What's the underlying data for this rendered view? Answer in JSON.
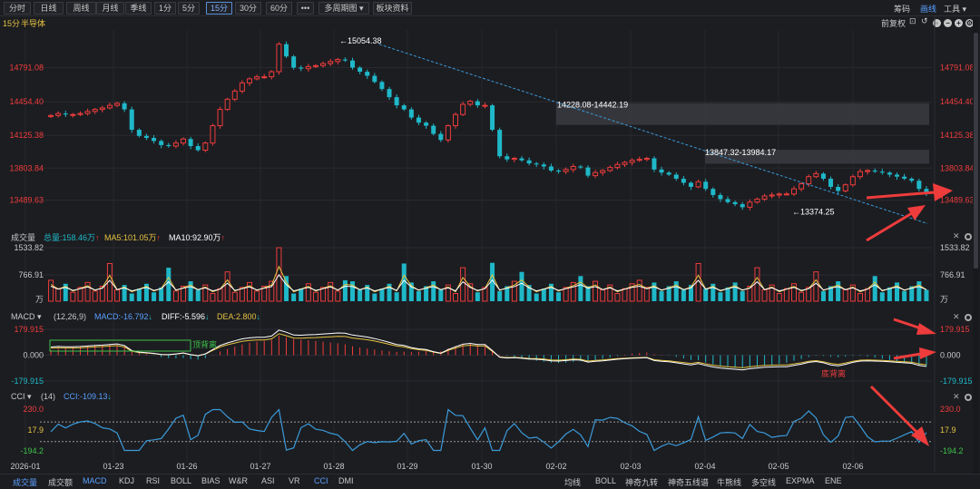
{
  "toolbar": {
    "periods": [
      {
        "label": "分时",
        "active": false
      },
      {
        "label": "日线",
        "active": false
      },
      {
        "label": "周线",
        "active": false
      },
      {
        "label": "月线",
        "active": false
      },
      {
        "label": "季线",
        "active": false
      },
      {
        "label": "1分",
        "active": false
      },
      {
        "label": "5分",
        "active": false
      },
      {
        "label": "15分",
        "active": true
      },
      {
        "label": "30分",
        "active": false
      },
      {
        "label": "60分",
        "active": false
      }
    ],
    "more_label": "•••",
    "multi_period_label": "多周期图",
    "sector_label": "板块资料",
    "chips_label": "筹码",
    "draw_label": "画线",
    "tools_label": "工具"
  },
  "subhead": {
    "period": "15分",
    "name": "半导体",
    "adjust_label": "前复权"
  },
  "colors": {
    "up": "#ee3c3c",
    "down": "#1fb8c8",
    "ma5": "#e6c341",
    "ma10": "#ffffff",
    "dea": "#e6c341",
    "cci": "#3a9ad9",
    "trend": "#3a9ad9",
    "arrow": "#ee3c3c",
    "accent": "#5aa0ff"
  },
  "chart_data": [
    {
      "type": "candlestick",
      "name": "price",
      "y_ticks": [
        "14791.08",
        "14454.40",
        "14125.38",
        "13803.84",
        "13489.63"
      ],
      "ylim": [
        13210,
        15160
      ],
      "annotations": [
        "15054.38",
        "14228.08-14442.19",
        "13847.32-13984.17",
        "13374.25"
      ],
      "zones": [
        {
          "label": "14228.08-14442.19",
          "low": 14228.08,
          "high": 14442.19
        },
        {
          "label": "13847.32-13984.17",
          "low": 13847.32,
          "high": 13984.17
        }
      ],
      "high_point": 15054.38,
      "low_point": 13374.25,
      "x_labels": [
        "2026-01",
        "01-23",
        "01-26",
        "01-27",
        "01-28",
        "01-29",
        "01-30",
        "02-02",
        "02-03",
        "02-04",
        "02-05",
        "02-06"
      ],
      "close_path": [
        14320,
        14340,
        14330,
        14330,
        14340,
        14360,
        14380,
        14395,
        14420,
        14440,
        14380,
        14180,
        14120,
        14100,
        14070,
        14030,
        14020,
        14050,
        14090,
        14020,
        13980,
        14050,
        14220,
        14380,
        14480,
        14560,
        14640,
        14680,
        14700,
        14700,
        14750,
        15020,
        14900,
        14790,
        14780,
        14800,
        14810,
        14830,
        14850,
        14870,
        14860,
        14790,
        14750,
        14710,
        14650,
        14580,
        14500,
        14420,
        14380,
        14300,
        14250,
        14220,
        14140,
        14080,
        14220,
        14330,
        14430,
        14460,
        14420,
        14420,
        14180,
        13920,
        13890,
        13900,
        13880,
        13850,
        13840,
        13820,
        13780,
        13770,
        13790,
        13820,
        13810,
        13730,
        13760,
        13780,
        13810,
        13840,
        13860,
        13880,
        13890,
        13900,
        13790,
        13760,
        13740,
        13700,
        13660,
        13620,
        13670,
        13600,
        13540,
        13500,
        13470,
        13450,
        13420,
        13470,
        13500,
        13530,
        13540,
        13550,
        13550,
        13600,
        13650,
        13720,
        13750,
        13700,
        13620,
        13580,
        13640,
        13720,
        13770,
        13780,
        13770,
        13760,
        13740,
        13720,
        13700,
        13680,
        13600,
        13560
      ]
    },
    {
      "type": "bar",
      "name": "成交量",
      "header": {
        "title": "成交量",
        "total": "总量:158.46万",
        "ma5": "MA5:101.05万",
        "ma10": "MA10:92.90万"
      },
      "y_ticks": [
        "1533.82",
        "766.91",
        "万"
      ],
      "ylim": [
        0,
        1533.82
      ]
    },
    {
      "type": "line",
      "name": "MACD",
      "header": {
        "title": "MACD",
        "params": "(12,26,9)",
        "macd": "MACD:-16.792",
        "diff": "DIFF:-5.596",
        "dea": "DEA:2.800"
      },
      "y_ticks": [
        "179.915",
        "0.000",
        "-179.915"
      ],
      "ylim": [
        -179.915,
        179.915
      ],
      "annotations": [
        "顶背离",
        "底背离"
      ]
    },
    {
      "type": "line",
      "name": "CCI",
      "header": {
        "title": "CCI",
        "params": "(14)",
        "cci": "CCI:-109.13"
      },
      "y_ticks": [
        "230.0",
        "17.9",
        "-194.2"
      ],
      "ylim": [
        -194.2,
        230.0
      ]
    }
  ],
  "bottom_left_tabs": [
    {
      "label": "成交量",
      "active": true
    },
    {
      "label": "成交额",
      "active": false
    },
    {
      "label": "MACD",
      "active": true
    },
    {
      "label": "KDJ",
      "active": false
    },
    {
      "label": "RSI",
      "active": false
    },
    {
      "label": "BOLL",
      "active": false
    },
    {
      "label": "BIAS",
      "active": false
    },
    {
      "label": "W&R",
      "active": false
    },
    {
      "label": "ASI",
      "active": false
    },
    {
      "label": "VR",
      "active": false
    },
    {
      "label": "CCI",
      "active": true
    },
    {
      "label": "DMI",
      "active": false
    }
  ],
  "bottom_right_tabs": [
    "均线",
    "BOLL",
    "神奇九转",
    "神奇五线谱",
    "牛熊线",
    "多空线",
    "EXPMA",
    "ENE"
  ]
}
